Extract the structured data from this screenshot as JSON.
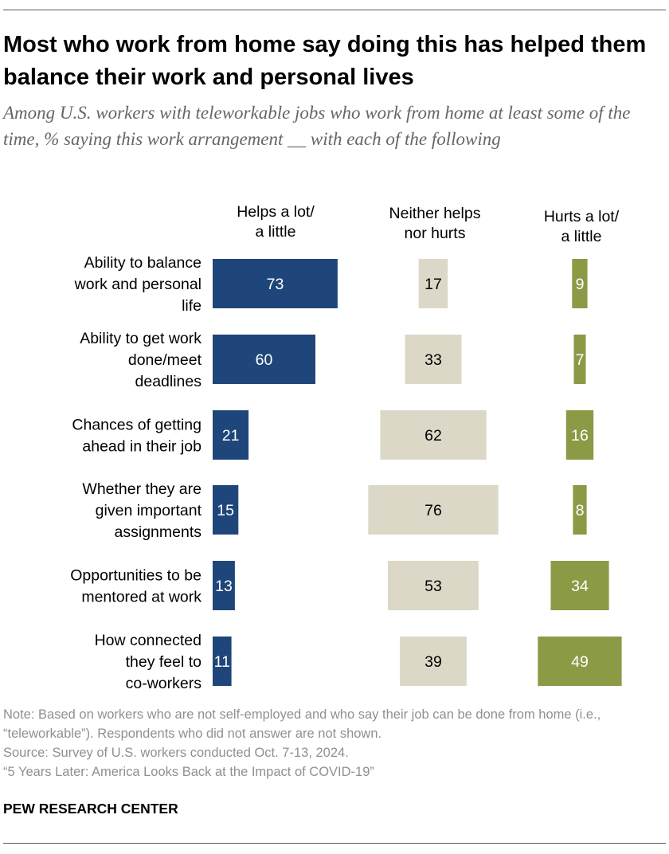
{
  "title": "Most who work from home say doing this has helped them balance their work and personal lives",
  "subtitle": "Among U.S. workers with teleworkable jobs who work from home at least some of the time, % saying this work arrangement __ with each of the following",
  "colors": {
    "helps": "#1f467a",
    "neither": "#dcd8c8",
    "hurts": "#8b9a45"
  },
  "chart_data": {
    "type": "bar",
    "orientation": "horizontal",
    "layout": "separate-columns",
    "categories": [
      "Ability to balance work and personal life",
      "Ability to get work done/meet deadlines",
      "Chances of getting ahead in their job",
      "Whether they are given important assignments",
      "Opportunities to be mentored at work",
      "How connected they feel to co-workers"
    ],
    "category_lines": [
      [
        "Ability to balance",
        "work and personal",
        "life"
      ],
      [
        "Ability to get work",
        "done/meet",
        "deadlines"
      ],
      [
        "Chances of getting",
        "ahead in their job"
      ],
      [
        "Whether they are",
        "given important",
        "assignments"
      ],
      [
        "Opportunities to be",
        "mentored at work"
      ],
      [
        "How connected",
        "they feel to",
        "co-workers"
      ]
    ],
    "series": [
      {
        "name": "Helps a lot/ a little",
        "header_lines": [
          "Helps a lot/",
          "a little"
        ],
        "values": [
          73,
          60,
          21,
          15,
          13,
          11
        ]
      },
      {
        "name": "Neither helps nor hurts",
        "header_lines": [
          "Neither helps",
          "nor hurts"
        ],
        "values": [
          17,
          33,
          62,
          76,
          53,
          39
        ]
      },
      {
        "name": "Hurts a lot/ a little",
        "header_lines": [
          "Hurts a lot/",
          "a little"
        ],
        "values": [
          9,
          7,
          16,
          8,
          34,
          49
        ]
      }
    ]
  },
  "footer": {
    "note": "Note: Based on workers who are not self-employed and who say their job can be done from home (i.e., “teleworkable”). Respondents who did not answer are not shown.",
    "source": "Source: Survey of U.S. workers conducted Oct. 7-13, 2024.",
    "report": "“5 Years Later: America Looks Back at the Impact of COVID-19”",
    "brand": "PEW RESEARCH CENTER"
  }
}
